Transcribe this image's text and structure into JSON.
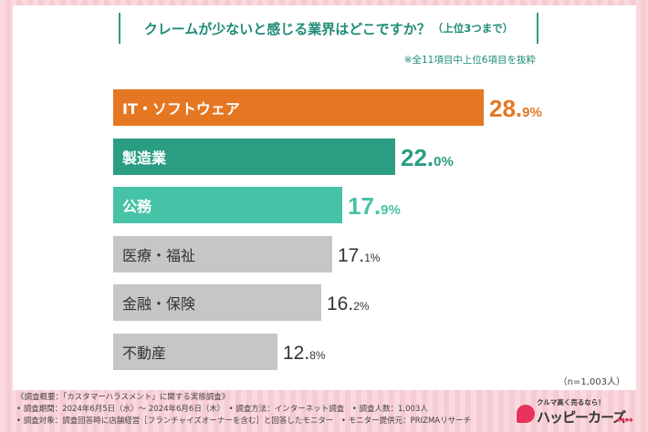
{
  "title": "クレームが少ないと感じる業界はどこですか？",
  "title_sub": "（上位3つまで）",
  "note": "※全11項目中上位6項目を抜粋",
  "sample_note": "（n=1,003人）",
  "chart_data": {
    "type": "bar",
    "orientation": "horizontal",
    "title": "クレームが少ないと感じる業界はどこですか？（上位3つまで）",
    "categories": [
      "IT・ソフトウェア",
      "製造業",
      "公務",
      "医療・福祉",
      "金融・保険",
      "不動産"
    ],
    "values": [
      28.9,
      22.0,
      17.9,
      17.1,
      16.2,
      12.8
    ],
    "value_labels": [
      {
        "int": "28.",
        "dec": "9",
        "pct": "%"
      },
      {
        "int": "22.",
        "dec": "0",
        "pct": "%"
      },
      {
        "int": "17.",
        "dec": "9",
        "pct": "%"
      },
      {
        "int": "17.",
        "dec": "1",
        "pct": "%"
      },
      {
        "int": "16.",
        "dec": "2",
        "pct": "%"
      },
      {
        "int": "12.",
        "dec": "8",
        "pct": "%"
      }
    ],
    "unit": "%",
    "max": 28.9,
    "colors": [
      "#e57722",
      "#2a9d83",
      "#46c3a6",
      "#c6c6c6",
      "#c6c6c6",
      "#c6c6c6"
    ],
    "label_colors": [
      "#e57722",
      "#2a9d83",
      "#46c3a6",
      "#333333",
      "#333333",
      "#333333"
    ],
    "highlight": [
      true,
      true,
      true,
      false,
      false,
      false
    ]
  },
  "footer": {
    "line1": "《調査概要：「カスタマーハラスメント」に関する実態調査》",
    "line2": "• 調査期間：2024年6月5日（水）～ 2024年6月6日（木）　• 調査方法：インターネット調査　• 調査人数：1,003人",
    "line3": "• 調査対象：調査回答時に店舗経営［フランチャイズオーナーを含む］と回答したモニター　• モニター提供元：PRIZMAリサーチ"
  },
  "brand": {
    "tagline": "クルマ高く売るなら！",
    "name": "ハッピーカーズ",
    "mark": "●●●●"
  }
}
